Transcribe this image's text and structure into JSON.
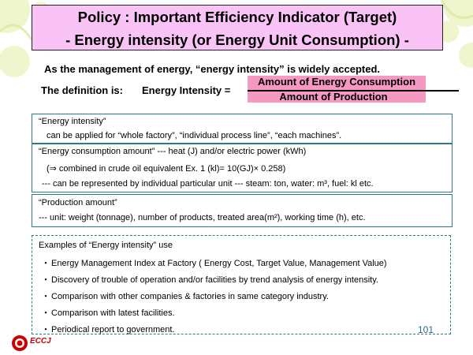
{
  "title": {
    "line1": "Policy : Important Efficiency Indicator (Target)",
    "line2": "- Energy intensity (or Energy Unit Consumption) -"
  },
  "intro": "As the management  of energy, “energy intensity”  is widely accepted.",
  "definition": {
    "label": "The definition is:",
    "term": "Energy Intensity =",
    "numerator": "Amount of Energy Consumption",
    "denominator": "Amount of Production"
  },
  "box1": {
    "heading": "“Energy intensity”",
    "body": "can be applied for “whole factory”, “individual process line”, “each machines”."
  },
  "box2": {
    "heading": "“Energy consumption amount” --- heat (J) and/or electric power (kWh)",
    "line2": "(⇒ combined in crude oil equivalent  Ex. 1 (kl)= 10(GJ)× 0.258)",
    "line3": "---  can be represented by individual particular unit --- steam: ton, water: m³, fuel: kl etc."
  },
  "box3": {
    "heading": "“Production amount”",
    "body": "--- unit: weight (tonnage), number of products, treated area(m²), working time (h), etc."
  },
  "examples": {
    "heading": "Examples of “Energy intensity” use",
    "bullet": "・",
    "items": [
      "Energy Management Index at Factory ( Energy Cost, Target Value, Management Value)",
      "Discovery of trouble of operation and/or facilities by trend analysis of energy intensity.",
      "Comparison with other companies & factories in same category industry.",
      "Comparison with latest facilities.",
      "Periodical report to government."
    ]
  },
  "page_number": "101",
  "logo_text": "ECCJ",
  "colors": {
    "title_bg": "#f9c3f5",
    "fraction_bg": "#f599c3",
    "box_border": "#2b7a88",
    "logo_red": "#cc0000"
  }
}
